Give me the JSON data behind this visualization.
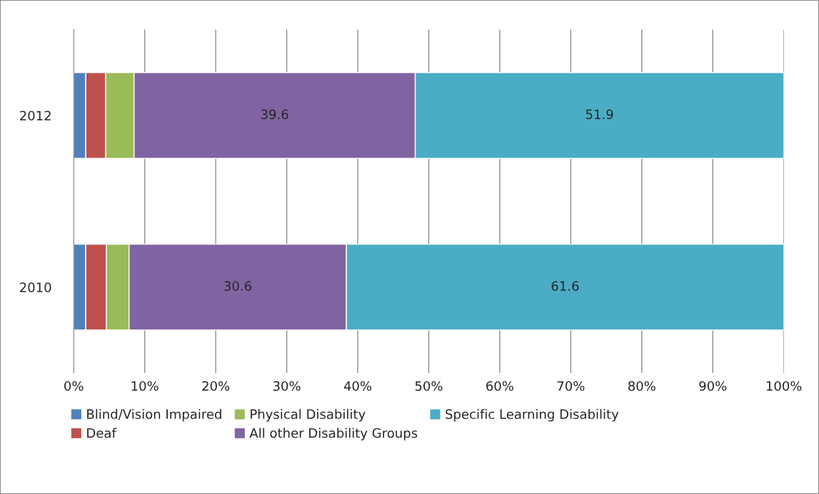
{
  "chart_data": {
    "type": "bar",
    "orientation": "horizontal",
    "stacked": true,
    "categories": [
      "2012",
      "2010"
    ],
    "series": [
      {
        "name": "Blind/Vision Impaired",
        "color": "#4f81bd",
        "values": [
          1.7,
          1.7
        ]
      },
      {
        "name": "Deaf",
        "color": "#c0504d",
        "values": [
          2.8,
          2.9
        ]
      },
      {
        "name": "Physical Disability",
        "color": "#9bbb59",
        "values": [
          4.0,
          3.2
        ]
      },
      {
        "name": "All other Disability Groups",
        "color": "#8064a2",
        "values": [
          39.6,
          30.6
        ],
        "value_labels": [
          "39.6",
          "30.6"
        ]
      },
      {
        "name": "Specific Learning Disability",
        "color": "#4bacc6",
        "values": [
          51.9,
          61.6
        ],
        "value_labels": [
          "51.9",
          "61.6"
        ]
      }
    ],
    "xlim": [
      0,
      100
    ],
    "xticks": [
      {
        "value": 0,
        "label": "0%"
      },
      {
        "value": 10,
        "label": "10%"
      },
      {
        "value": 20,
        "label": "20%"
      },
      {
        "value": 30,
        "label": "30%"
      },
      {
        "value": 40,
        "label": "40%"
      },
      {
        "value": 50,
        "label": "50%"
      },
      {
        "value": 60,
        "label": "60%"
      },
      {
        "value": 70,
        "label": "70%"
      },
      {
        "value": 80,
        "label": "80%"
      },
      {
        "value": 90,
        "label": "90%"
      },
      {
        "value": 100,
        "label": "100%"
      }
    ],
    "grid": "x",
    "legend": "bottom"
  }
}
